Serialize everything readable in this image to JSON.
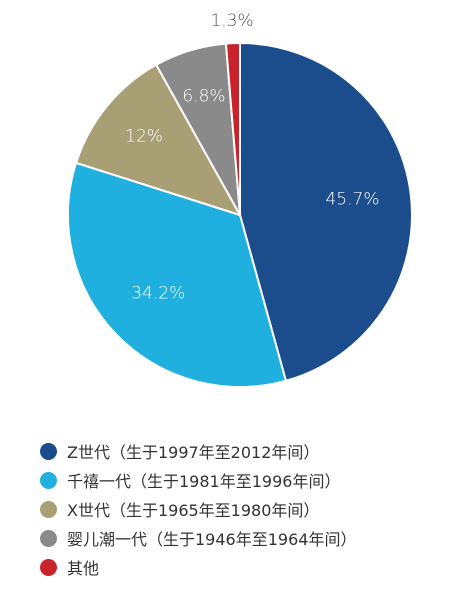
{
  "chart_data": {
    "type": "pie",
    "title": "",
    "start_angle_deg": 0,
    "direction": "clockwise",
    "legend_position": "bottom-left",
    "series": [
      {
        "name": "Z世代（生于1997年至2012年间）",
        "value": 45.7,
        "label": "45.7%",
        "color": "#1b4d8c"
      },
      {
        "name": "千禧一代（生于1981年至1996年间）",
        "value": 34.2,
        "label": "34.2%",
        "color": "#1fb0df"
      },
      {
        "name": "X世代（生于1965年至1980年间）",
        "value": 12,
        "label": "12%",
        "color": "#a99f75"
      },
      {
        "name": "婴儿潮一代（生于1946年至1964年间）",
        "value": 6.8,
        "label": "6.8%",
        "color": "#8a8a8a"
      },
      {
        "name": "其他",
        "value": 1.3,
        "label": "1.3%",
        "color": "#c8222b"
      }
    ]
  }
}
